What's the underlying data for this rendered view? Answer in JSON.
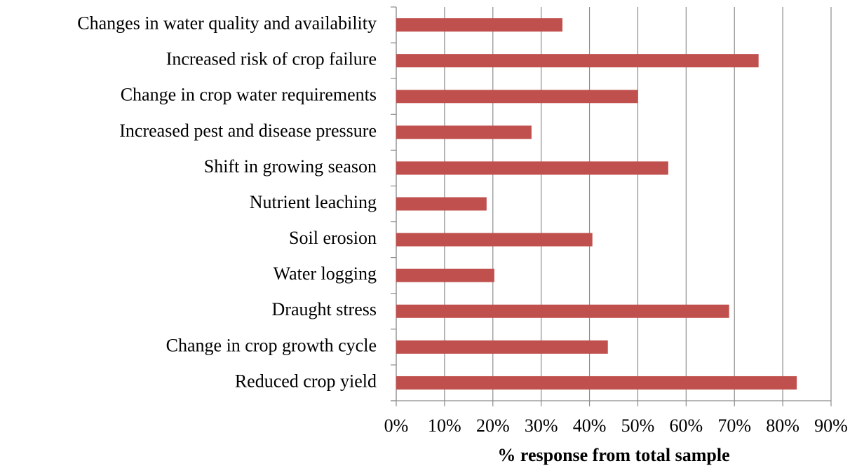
{
  "chart_data": {
    "type": "bar",
    "orientation": "horizontal",
    "x_label": "% response from total sample",
    "categories": [
      "Changes in water quality and availability",
      "Increased risk of crop failure",
      "Change in crop water requirements",
      "Increased pest and disease pressure",
      "Shift in growing season",
      "Nutrient leaching",
      "Soil erosion",
      "Water logging",
      "Draught stress",
      "Change in crop growth cycle",
      "Reduced crop yield"
    ],
    "values": [
      34.4,
      75,
      50,
      28,
      56.3,
      18.7,
      40.6,
      20.3,
      68.9,
      43.8,
      82.9
    ],
    "color": "#c0504d",
    "xlim": [
      0,
      90
    ],
    "xticks": [
      {
        "value": 0,
        "label": "0%"
      },
      {
        "value": 10,
        "label": "10%"
      },
      {
        "value": 20,
        "label": "20%"
      },
      {
        "value": 30,
        "label": "30%"
      },
      {
        "value": 40,
        "label": "40%"
      },
      {
        "value": 50,
        "label": "50%"
      },
      {
        "value": 60,
        "label": "60%"
      },
      {
        "value": 70,
        "label": "70%"
      },
      {
        "value": 80,
        "label": "80%"
      },
      {
        "value": 90,
        "label": "90%"
      }
    ],
    "grid": true
  }
}
